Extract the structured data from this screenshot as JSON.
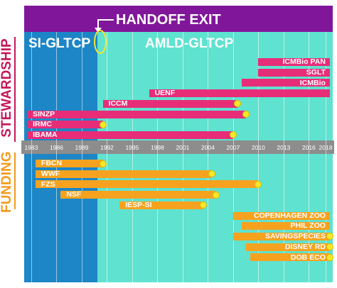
{
  "header": {
    "handoff_label": "HANDOFF EXIT",
    "left_phase": "SI-GLTCP",
    "right_phase": "AMLD-GLTCP"
  },
  "side_labels": {
    "top": "STEWARDSHIP",
    "bottom": "FUNDING"
  },
  "colors": {
    "background_teal": "#45d8c8",
    "si_phase_blue": "#1c86c6",
    "header_purple": "#80169a",
    "axis_grey": "#8d8d8d",
    "stewardship_bar": "#e72d78",
    "funding_bar": "#f7a21f",
    "end_marker": "#f7e62a",
    "stewardship_text": "#c7175a",
    "funding_text": "#f39a1d"
  },
  "chart_data": {
    "type": "gantt",
    "x_ticks": [
      "1983",
      "1986",
      "1989",
      "1992",
      "1995",
      "1998",
      "2001",
      "2004",
      "2007",
      "2010",
      "2013",
      "2016",
      "2018"
    ],
    "x_range": [
      1981.5,
      2018.5
    ],
    "handoff_year": 1990.5,
    "stewardship": [
      {
        "name": "ICMBio PAN",
        "start": 2010,
        "end": 2018.5,
        "marker": false
      },
      {
        "name": "SGLT",
        "start": 2010,
        "end": 2018.5,
        "marker": false
      },
      {
        "name": "ICMBio",
        "start": 2008,
        "end": 2018.5,
        "marker": false
      },
      {
        "name": "UENF",
        "start": 1997,
        "end": 2018.5,
        "marker": false
      },
      {
        "name": "ICCM",
        "start": 1991.5,
        "end": 2007.5,
        "marker": true
      },
      {
        "name": "SINZP",
        "start": 1982.5,
        "end": 2008.5,
        "marker": true
      },
      {
        "name": "IRMC",
        "start": 1982.5,
        "end": 1991.5,
        "marker": true
      },
      {
        "name": "IBAMA",
        "start": 1982.5,
        "end": 2007,
        "marker": true
      }
    ],
    "funding": [
      {
        "name": "FBCN",
        "start": 1983.5,
        "end": 1991.5,
        "marker": true
      },
      {
        "name": "WWF",
        "start": 1983.5,
        "end": 2004.5,
        "marker": true
      },
      {
        "name": "FZS",
        "start": 1983.5,
        "end": 2010,
        "marker": true
      },
      {
        "name": "NSF",
        "start": 1986.5,
        "end": 2005,
        "marker": true
      },
      {
        "name": "IESP-SI",
        "start": 1993.5,
        "end": 2003.5,
        "marker": true
      },
      {
        "name": "COPENHAGEN ZOO",
        "start": 2007,
        "end": 2018.5,
        "marker": false
      },
      {
        "name": "PHIL ZOO",
        "start": 2008,
        "end": 2018.5,
        "marker": false
      },
      {
        "name": "SAVINGSPECIES",
        "start": 2007,
        "end": 2018.5,
        "marker": true
      },
      {
        "name": "DISNEY RD",
        "start": 2008.5,
        "end": 2018.5,
        "marker": true
      },
      {
        "name": "DOB ECO",
        "start": 2009,
        "end": 2018.5,
        "marker": true
      }
    ]
  }
}
